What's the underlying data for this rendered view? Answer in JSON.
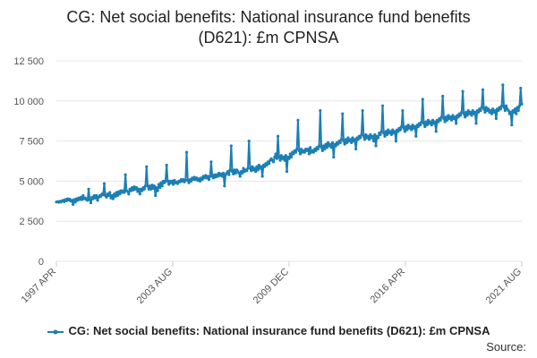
{
  "title_lines": [
    "CG: Net social benefits: National insurance fund benefits",
    "(D621): £m CPNSA"
  ],
  "legend_label": "CG: Net social benefits: National insurance fund benefits (D621): £m CPNSA",
  "source_label": "Source:",
  "colors": {
    "series": "#1c7fb4",
    "grid": "#e6e6e6",
    "axis_text": "#555555"
  },
  "chart_data": {
    "type": "line",
    "title": "CG: Net social benefits: National insurance fund benefits (D621): £m CPNSA",
    "xlabel": "",
    "ylabel": "",
    "ylim": [
      0,
      12500
    ],
    "yticks": [
      0,
      2500,
      5000,
      7500,
      10000,
      12500
    ],
    "ytick_labels": [
      "0",
      "2 500",
      "5 000",
      "7 500",
      "10 000",
      "12 500"
    ],
    "xticks": [
      "1997 APR",
      "2003 AUG",
      "2009 DEC",
      "2016 APR",
      "2021 AUG"
    ],
    "x_start": "1997 APR",
    "x_end": "2021 AUG",
    "grid": true,
    "legend_position": "bottom",
    "series": [
      {
        "name": "CG: Net social benefits: National insurance fund benefits (D621): £m CPNSA",
        "values": [
          3700,
          3720,
          3680,
          3750,
          3700,
          3760,
          3800,
          3720,
          3850,
          3780,
          3900,
          3820,
          3880,
          3750,
          3800,
          3550,
          3850,
          3700,
          3900,
          3800,
          3950,
          3850,
          4000,
          3850,
          4100,
          3900,
          3950,
          3850,
          3800,
          4500,
          3850,
          3650,
          4000,
          3900,
          4100,
          3950,
          4100,
          3800,
          4000,
          4100,
          4050,
          4200,
          4150,
          4850,
          4100,
          4000,
          4200,
          4100,
          4300,
          3950,
          4100,
          3900,
          4200,
          4050,
          4300,
          4100,
          4350,
          4200,
          4400,
          4300,
          4400,
          4300,
          5400,
          4400,
          4350,
          4200,
          4500,
          4400,
          4600,
          4450,
          4650,
          4500,
          4600,
          4350,
          4500,
          4200,
          4500,
          4400,
          4600,
          4500,
          4700,
          5900,
          4700,
          4500,
          4700,
          4500,
          4750,
          4550,
          4700,
          4100,
          4600,
          4400,
          4800,
          4600,
          4900,
          4700,
          5000,
          4900,
          5000,
          6000,
          5000,
          4800,
          5000,
          4900,
          5000,
          4800,
          5050,
          4900,
          4950,
          4850,
          5000,
          4950,
          5100,
          5000,
          5100,
          4950,
          5050,
          6800,
          5050,
          4900,
          5100,
          5000,
          5200,
          5100,
          5250,
          5100,
          5200,
          5050,
          5150,
          5000,
          5200,
          5100,
          5300,
          5200,
          5350,
          5200,
          5300,
          5100,
          5300,
          6200,
          5300,
          5200,
          5400,
          5250,
          5400,
          5300,
          5500,
          5350,
          5450,
          5300,
          5500,
          4700,
          5400,
          5500,
          5600,
          5400,
          5700,
          7200,
          5600,
          5450,
          5700,
          5500,
          5700,
          5600,
          5500,
          5300,
          5600,
          5500,
          5800,
          5600,
          5700,
          5650,
          5800,
          7500,
          5800,
          5650,
          5900,
          5700,
          5800,
          5600,
          5900,
          5700,
          6000,
          5800,
          5900,
          5300,
          6000,
          5900,
          6100,
          6000,
          6200,
          6100,
          6300,
          6400,
          6300,
          6200,
          6500,
          6700,
          6400,
          7800,
          6500,
          6300,
          6600,
          6400,
          6500,
          6300,
          6600,
          5600,
          6500,
          6400,
          6700,
          6500,
          6800,
          6700,
          6900,
          6800,
          7000,
          8800,
          6900,
          6700,
          7000,
          6800,
          6900,
          6800,
          7000,
          6900,
          7000,
          6700,
          7100,
          6800,
          6900,
          6800,
          7000,
          6900,
          7100,
          7000,
          7200,
          9400,
          7100,
          6900,
          7200,
          7000,
          7300,
          7100,
          7400,
          7200,
          7300,
          7100,
          7400,
          6500,
          7300,
          7200,
          7400,
          7300,
          7500,
          7400,
          7600,
          9200,
          7500,
          7300,
          7600,
          7400,
          7700,
          7500,
          7600,
          7400,
          7700,
          7500,
          7600,
          7000,
          7700,
          7600,
          7800,
          7700,
          7900,
          9400,
          7800,
          7600,
          7900,
          7700,
          7800,
          7600,
          7900,
          7700,
          7800,
          7500,
          7900,
          7200,
          7800,
          7700,
          8000,
          7900,
          8100,
          9700,
          8000,
          7800,
          8100,
          7900,
          8200,
          8000,
          8100,
          7900,
          8200,
          8000,
          8100,
          7500,
          8200,
          8100,
          8300,
          8200,
          8400,
          9400,
          8300,
          8100,
          8400,
          8200,
          8500,
          8300,
          8400,
          8200,
          8500,
          8300,
          8400,
          7800,
          8500,
          8400,
          8600,
          8500,
          8700,
          10100,
          8600,
          8400,
          8700,
          8500,
          8800,
          8600,
          8700,
          8500,
          8800,
          8600,
          8700,
          8100,
          8800,
          8700,
          8900,
          8800,
          9000,
          10300,
          8900,
          8700,
          9000,
          8800,
          9100,
          8900,
          9000,
          8800,
          9100,
          8900,
          9000,
          8600,
          9100,
          9000,
          9200,
          9100,
          9300,
          10600,
          9200,
          9000,
          9300,
          9100,
          9400,
          9200,
          9300,
          9100,
          9400,
          9200,
          9300,
          8600,
          9400,
          9300,
          9500,
          9400,
          9600,
          10700,
          9500,
          9300,
          9600,
          9400,
          9500,
          9300,
          9400,
          9200,
          9500,
          9300,
          9400,
          8900,
          9500,
          9400,
          9600,
          9500,
          9700,
          11000,
          9600,
          9400,
          9700,
          9500,
          9400,
          9200,
          9300,
          8500,
          9400,
          9300,
          9500,
          9200,
          9600,
          9400,
          9700,
          10800,
          9800
        ]
      }
    ]
  }
}
